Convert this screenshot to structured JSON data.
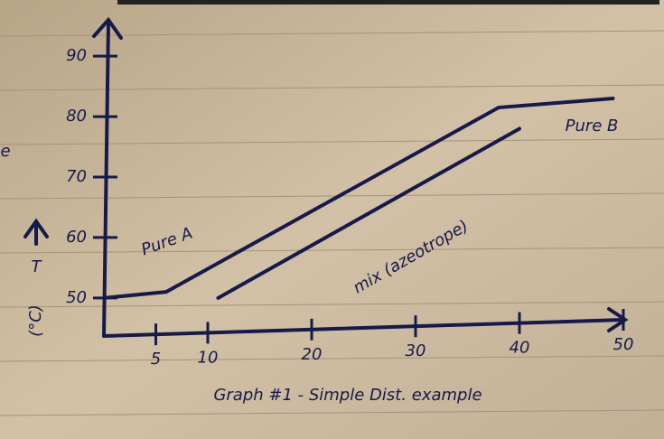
{
  "chart_data": {
    "type": "line",
    "title": "Graph #1 - Simple Dist. example",
    "y_label": "T",
    "y_unit": "(°C)",
    "annotations": [
      "Pure A",
      "Pure B",
      "mix (azeotrope)",
      "e"
    ],
    "series": [
      {
        "color": "#161a4a",
        "x": [
          0,
          6,
          38,
          49
        ],
        "values": [
          50,
          51,
          81.5,
          83
        ]
      },
      {
        "color": "#161a4a",
        "x": [
          11,
          40
        ],
        "values": [
          50,
          78
        ]
      }
    ],
    "xlim": [
      0,
      52
    ],
    "xticks": [
      5,
      10,
      20,
      30,
      40,
      50
    ],
    "ylim": [
      44,
      96
    ],
    "yticks": [
      50,
      60,
      70,
      80,
      90
    ],
    "grid": false
  }
}
